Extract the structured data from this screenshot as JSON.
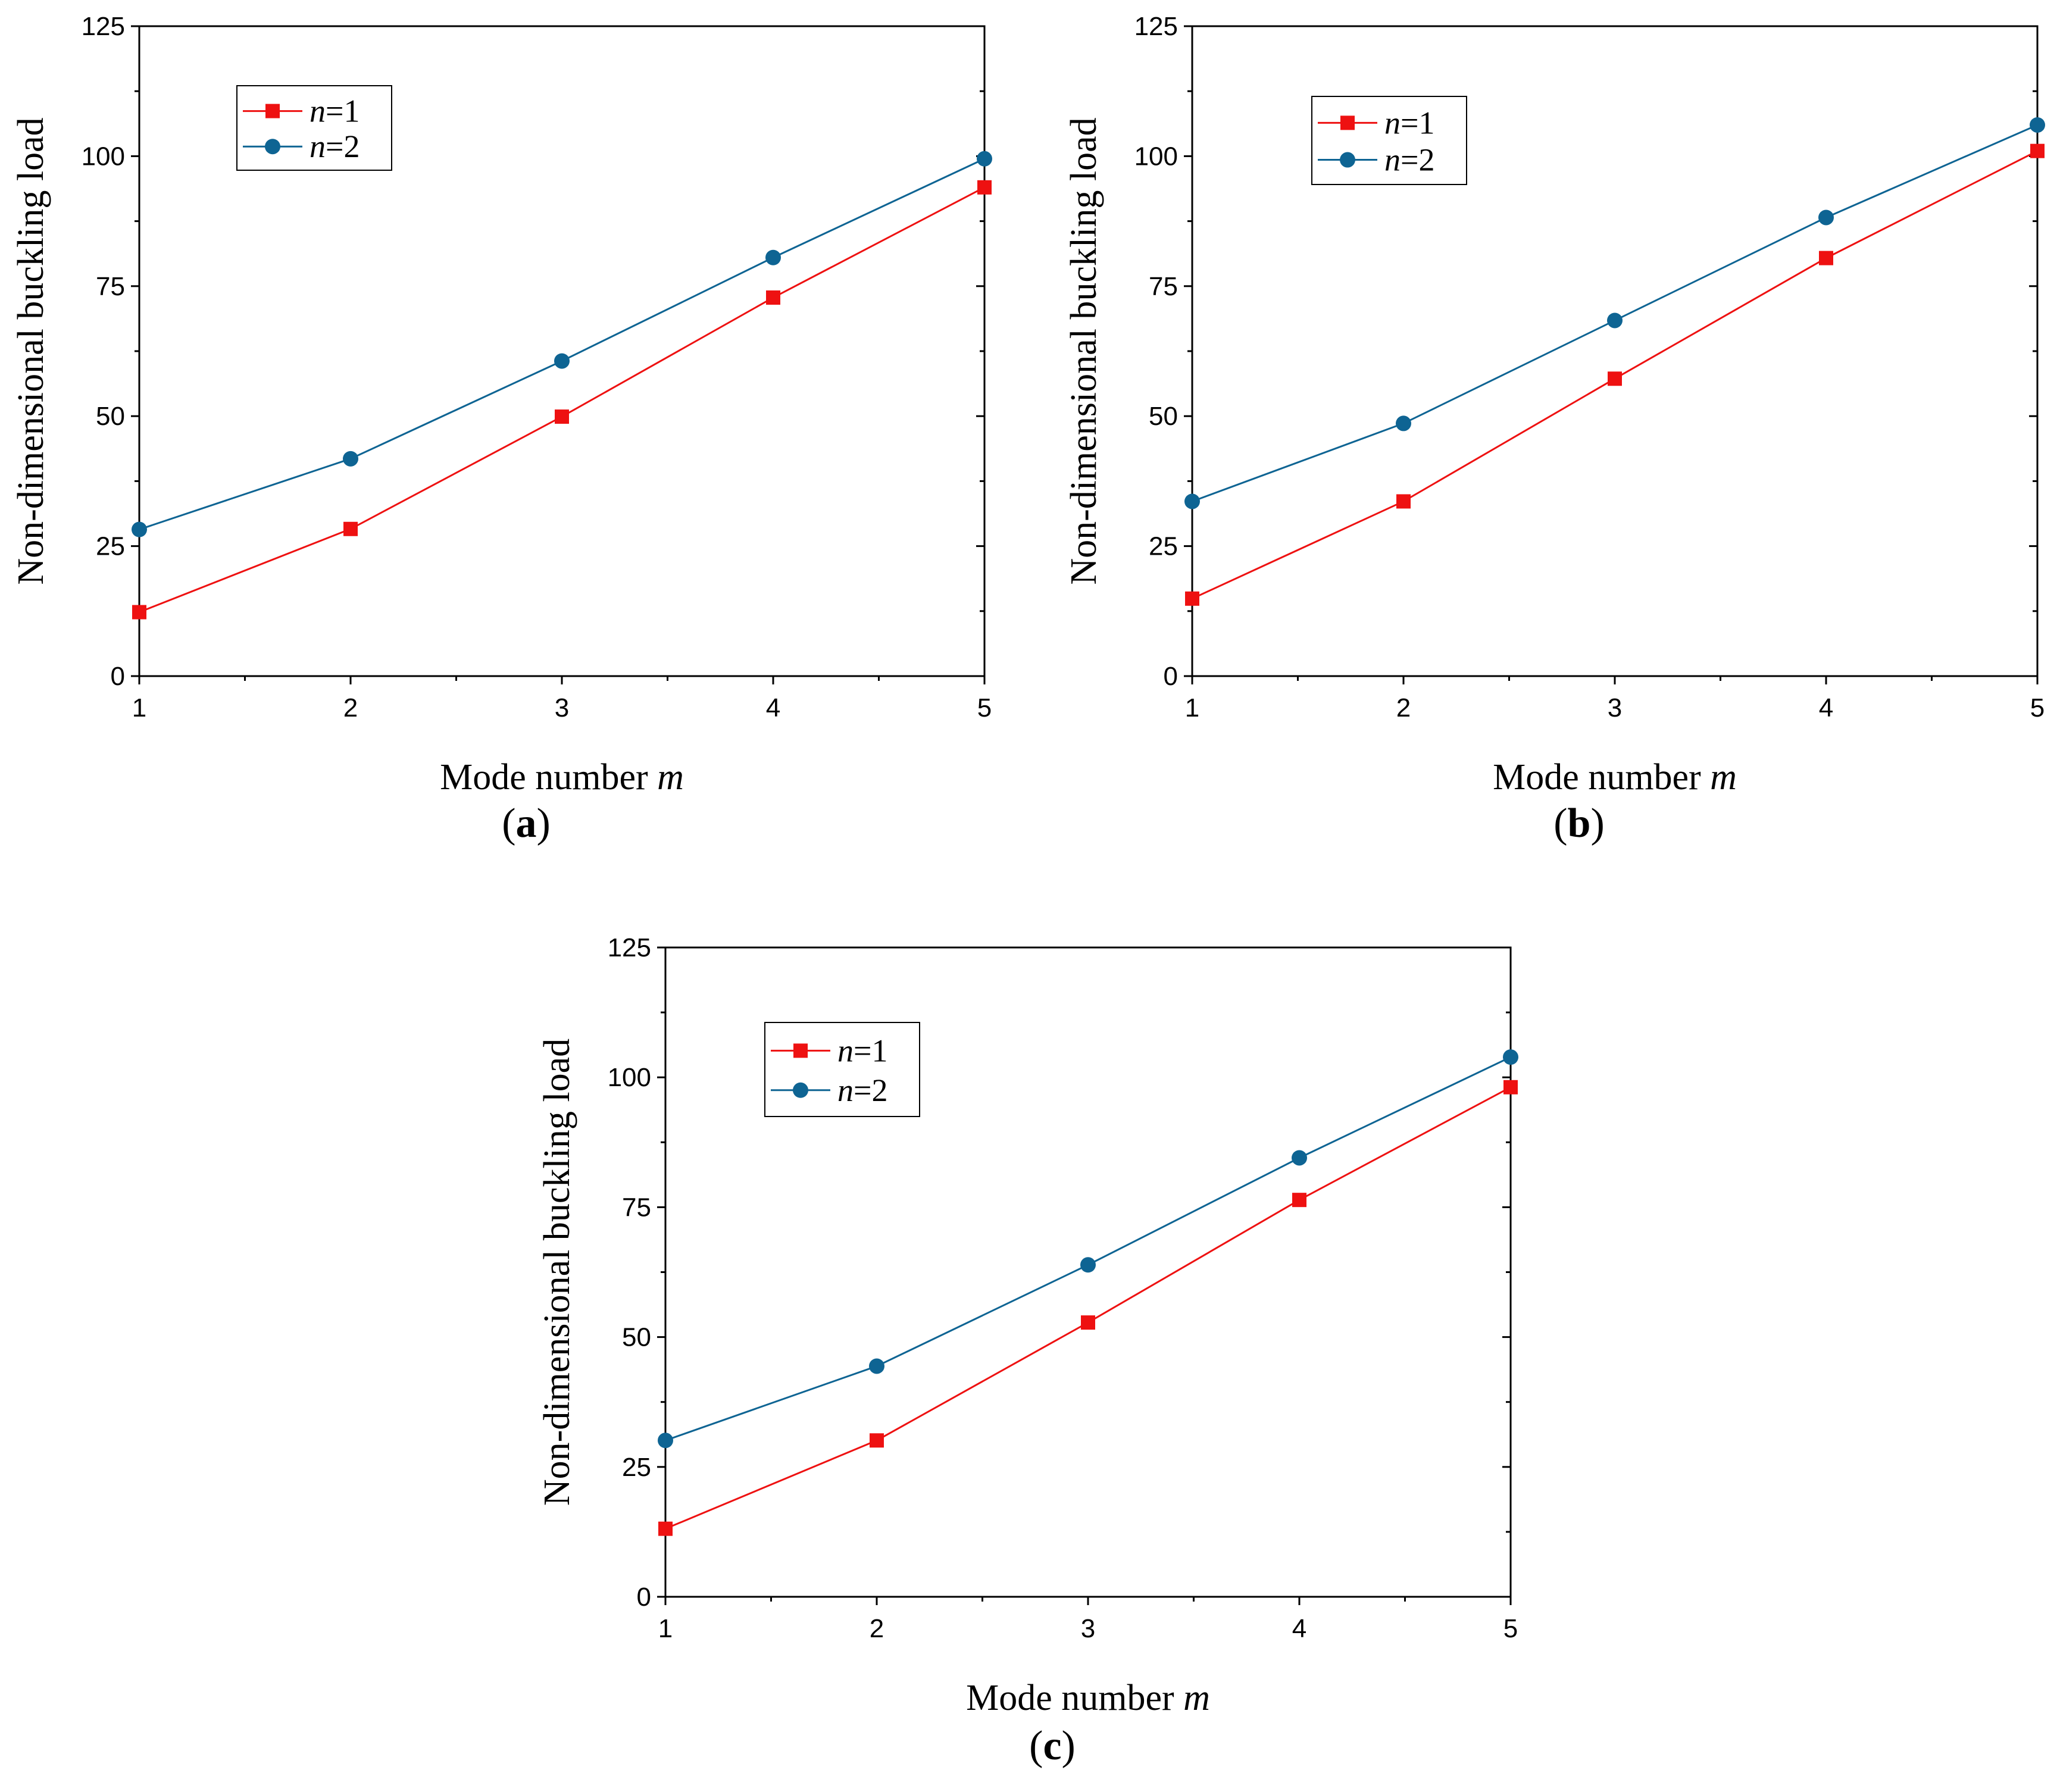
{
  "colors": {
    "n1": "#ee1111",
    "n2": "#0e6493",
    "axis": "#000000"
  },
  "chart_data": [
    {
      "panel": "(a)",
      "panel_letter": "a",
      "type": "line",
      "xlabel": "Mode number",
      "xlabel_var": "m",
      "ylabel": "Non-dimensional  buckling load",
      "x": [
        1,
        2,
        3,
        4,
        5
      ],
      "xlim": [
        1,
        5
      ],
      "ylim": [
        0,
        125
      ],
      "xticks": [
        "1",
        "2",
        "3",
        "4",
        "5"
      ],
      "yticks": [
        "0",
        "25",
        "50",
        "75",
        "100",
        "125"
      ],
      "legend_position": "top-left",
      "series": [
        {
          "name": "n=1",
          "var": "n",
          "eq": "=1",
          "marker": "square",
          "values": [
            12.3,
            28.3,
            49.9,
            72.8,
            94.0
          ]
        },
        {
          "name": "n=2",
          "var": "n",
          "eq": "=2",
          "marker": "circle",
          "values": [
            28.2,
            41.8,
            60.6,
            80.5,
            99.5
          ]
        }
      ]
    },
    {
      "panel": "(b)",
      "panel_letter": "b",
      "type": "line",
      "xlabel": "Mode number",
      "xlabel_var": "m",
      "ylabel": "Non-dimensional buckling load",
      "x": [
        1,
        2,
        3,
        4,
        5
      ],
      "xlim": [
        1,
        5
      ],
      "ylim": [
        0,
        125
      ],
      "xticks": [
        "1",
        "2",
        "3",
        "4",
        "5"
      ],
      "yticks": [
        "0",
        "25",
        "50",
        "75",
        "100",
        "125"
      ],
      "legend_position": "top-left",
      "series": [
        {
          "name": "n=1",
          "var": "n",
          "eq": "=1",
          "marker": "square",
          "values": [
            14.9,
            33.6,
            57.2,
            80.4,
            101.0
          ]
        },
        {
          "name": "n=2",
          "var": "n",
          "eq": "=2",
          "marker": "circle",
          "values": [
            33.6,
            48.6,
            68.4,
            88.2,
            106.0
          ]
        }
      ]
    },
    {
      "panel": "(c)",
      "panel_letter": "c",
      "type": "line",
      "xlabel": "Mode number",
      "xlabel_var": "m",
      "ylabel": "Non-dimensional buckling load",
      "x": [
        1,
        2,
        3,
        4,
        5
      ],
      "xlim": [
        1,
        5
      ],
      "ylim": [
        0,
        125
      ],
      "xticks": [
        "1",
        "2",
        "3",
        "4",
        "5"
      ],
      "yticks": [
        "0",
        "25",
        "50",
        "75",
        "100",
        "125"
      ],
      "legend_position": "top-left",
      "series": [
        {
          "name": "n=1",
          "var": "n",
          "eq": "=1",
          "marker": "square",
          "values": [
            13.1,
            30.1,
            52.8,
            76.4,
            98.1
          ]
        },
        {
          "name": "n=2",
          "var": "n",
          "eq": "=2",
          "marker": "circle",
          "values": [
            30.1,
            44.4,
            63.9,
            84.5,
            103.9
          ]
        }
      ]
    }
  ]
}
